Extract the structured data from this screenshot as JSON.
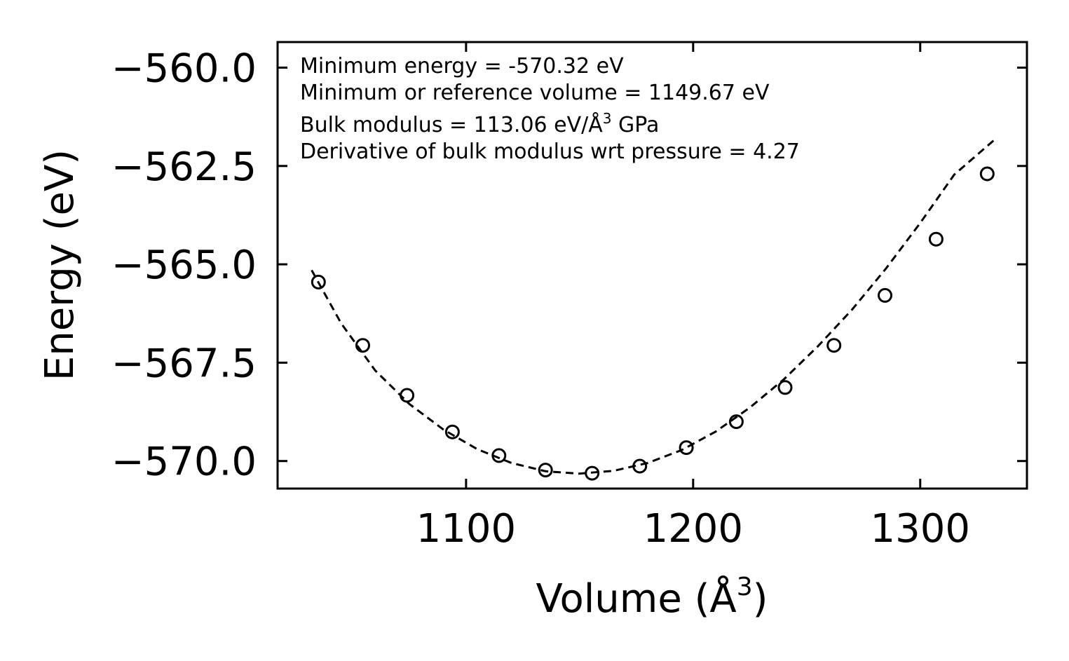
{
  "chart_data": {
    "type": "scatter",
    "title": "",
    "xlabel": "Volume (Å",
    "xlabel_sup": "3",
    "xlabel_end": ")",
    "ylabel": "Energy (eV)",
    "xlim": [
      1017,
      1347
    ],
    "ylim": [
      -570.7,
      -559.35
    ],
    "xticks": [
      1100,
      1200,
      1300
    ],
    "xtick_labels": [
      "1100",
      "1200",
      "1300"
    ],
    "yticks": [
      -560.0,
      -562.5,
      -565.0,
      -567.5,
      -570.0
    ],
    "ytick_labels": [
      "−560.0",
      "−562.5",
      "−565.0",
      "−567.5",
      "−570.0"
    ],
    "series": [
      {
        "name": "data",
        "style": "open-circle",
        "x": [
          1035,
          1054.5,
          1074,
          1094,
          1114.5,
          1135,
          1155.5,
          1176.5,
          1197,
          1219,
          1240.5,
          1262,
          1284.5,
          1307,
          1329.5
        ],
        "y": [
          -565.45,
          -567.06,
          -568.33,
          -569.26,
          -569.86,
          -570.23,
          -570.31,
          -570.13,
          -569.66,
          -569.0,
          -568.13,
          -567.06,
          -565.79,
          -564.36,
          -562.7
        ]
      },
      {
        "name": "fit",
        "style": "dashed-line",
        "x": [
          1032,
          1045,
          1060,
          1075,
          1090,
          1105,
          1120,
          1135,
          1149.67,
          1165,
          1180,
          1195,
          1210,
          1225,
          1240,
          1255,
          1270,
          1285,
          1300,
          1315,
          1333
        ],
        "y": [
          -565.15,
          -566.5,
          -567.7,
          -568.55,
          -569.2,
          -569.7,
          -570.05,
          -570.26,
          -570.32,
          -570.25,
          -570.05,
          -569.72,
          -569.25,
          -568.64,
          -567.92,
          -567.08,
          -566.15,
          -565.1,
          -563.95,
          -562.72,
          -561.82
        ]
      }
    ],
    "annotations": [
      {
        "text": "Minimum energy = -570.32 eV"
      },
      {
        "text": "Minimum or reference volume = 1149.67 eV"
      },
      {
        "text": "Bulk modulus = 113.06 eV/Å",
        "sup": "3",
        "end": " GPa"
      },
      {
        "text": "Derivative of bulk modulus wrt pressure = 4.27"
      }
    ],
    "grid": false,
    "legend": "none"
  }
}
